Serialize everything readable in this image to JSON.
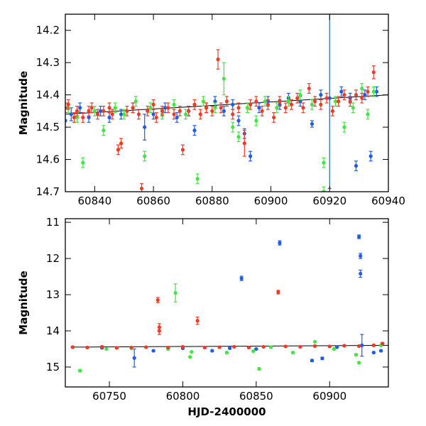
{
  "colors": {
    "blue": "#1f5ce8",
    "green": "#3ee83e",
    "red": "#f03a24",
    "axis": "#000000"
  },
  "chart_data": [
    {
      "type": "scatter",
      "xlabel": "",
      "ylabel": "Magnitude",
      "xlim": [
        60830,
        60940
      ],
      "ylim": [
        14.7,
        14.15
      ],
      "y_inverted": true,
      "x_ticks": [
        60840,
        60860,
        60880,
        60900,
        60920,
        60940
      ],
      "x_tick_labels": [
        "60840",
        "60860",
        "60880",
        "60900",
        "60920",
        "60940"
      ],
      "y_ticks": [
        14.2,
        14.3,
        14.4,
        14.5,
        14.6,
        14.7
      ],
      "y_tick_labels": [
        "14.2",
        "14.3",
        "14.4",
        "14.5",
        "14.6",
        "14.7"
      ],
      "trend_line": {
        "x": [
          60830,
          60940
        ],
        "y": [
          14.46,
          14.4
        ]
      },
      "series": [
        {
          "color": "blue",
          "points": [
            [
              60830,
              14.48,
              0.02
            ],
            [
              60832,
              14.46,
              0.02
            ],
            [
              60835,
              14.44,
              0.015
            ],
            [
              60838,
              14.47,
              0.015
            ],
            [
              60842,
              14.45,
              0.015
            ],
            [
              60845,
              14.47,
              0.015
            ],
            [
              60849,
              14.46,
              0.015
            ],
            [
              60853,
              14.44,
              0.015
            ],
            [
              60857,
              14.5,
              0.04
            ],
            [
              60860,
              14.46,
              0.015
            ],
            [
              60864,
              14.44,
              0.015
            ],
            [
              60868,
              14.47,
              0.015
            ],
            [
              60872,
              14.45,
              0.015
            ],
            [
              60874,
              14.51,
              0.015
            ],
            [
              60878,
              14.44,
              0.015
            ],
            [
              60881,
              14.42,
              0.015
            ],
            [
              60884,
              14.45,
              0.015
            ],
            [
              60887,
              14.43,
              0.015
            ],
            [
              60889,
              14.48,
              0.015
            ],
            [
              60891,
              14.52,
              0.015
            ],
            [
              60893,
              14.59,
              0.015
            ],
            [
              60896,
              14.44,
              0.015
            ],
            [
              60899,
              14.42,
              0.015
            ],
            [
              60903,
              14.43,
              0.015
            ],
            [
              60906,
              14.41,
              0.015
            ],
            [
              60910,
              14.42,
              0.015
            ],
            [
              60914,
              14.49,
              0.01
            ],
            [
              60917,
              14.4,
              0.015
            ],
            [
              60920,
              14.41,
              0.28
            ],
            [
              60924,
              14.39,
              0.015
            ],
            [
              60927,
              14.41,
              0.015
            ],
            [
              60929,
              14.62,
              0.015
            ],
            [
              60932,
              14.4,
              0.015
            ],
            [
              60934,
              14.59,
              0.015
            ],
            [
              60936,
              14.39,
              0.015
            ]
          ]
        },
        {
          "color": "green",
          "points": [
            [
              60831,
              14.44,
              0.015
            ],
            [
              60834,
              14.47,
              0.015
            ],
            [
              60836,
              14.61,
              0.015
            ],
            [
              60840,
              14.45,
              0.015
            ],
            [
              60843,
              14.51,
              0.015
            ],
            [
              60847,
              14.44,
              0.015
            ],
            [
              60850,
              14.46,
              0.015
            ],
            [
              60854,
              14.42,
              0.015
            ],
            [
              60857,
              14.59,
              0.015
            ],
            [
              60859,
              14.44,
              0.015
            ],
            [
              60863,
              14.46,
              0.015
            ],
            [
              60867,
              14.43,
              0.015
            ],
            [
              60871,
              14.46,
              0.015
            ],
            [
              60875,
              14.66,
              0.015
            ],
            [
              60877,
              14.42,
              0.015
            ],
            [
              60881,
              14.44,
              0.015
            ],
            [
              60884,
              14.35,
              0.05
            ],
            [
              60887,
              14.5,
              0.015
            ],
            [
              60889,
              14.53,
              0.015
            ],
            [
              60892,
              14.44,
              0.015
            ],
            [
              60895,
              14.48,
              0.015
            ],
            [
              60898,
              14.42,
              0.015
            ],
            [
              60902,
              14.44,
              0.015
            ],
            [
              60906,
              14.42,
              0.015
            ],
            [
              60910,
              14.4,
              0.015
            ],
            [
              60914,
              14.43,
              0.015
            ],
            [
              60918,
              14.61,
              0.015
            ],
            [
              60918,
              14.7,
              0.015
            ],
            [
              60922,
              14.42,
              0.015
            ],
            [
              60925,
              14.5,
              0.015
            ],
            [
              60928,
              14.44,
              0.015
            ],
            [
              60931,
              14.38,
              0.015
            ],
            [
              60933,
              14.46,
              0.015
            ],
            [
              60935,
              14.39,
              0.015
            ]
          ]
        },
        {
          "color": "red",
          "points": [
            [
              60830,
              14.44,
              0.015
            ],
            [
              60831,
              14.43,
              0.015
            ],
            [
              60833,
              14.47,
              0.015
            ],
            [
              60834,
              14.45,
              0.015
            ],
            [
              60836,
              14.47,
              0.015
            ],
            [
              60838,
              14.45,
              0.015
            ],
            [
              60839,
              14.44,
              0.015
            ],
            [
              60841,
              14.46,
              0.015
            ],
            [
              60843,
              14.45,
              0.015
            ],
            [
              60845,
              14.44,
              0.015
            ],
            [
              60846,
              14.46,
              0.015
            ],
            [
              60848,
              14.57,
              0.015
            ],
            [
              60849,
              14.55,
              0.015
            ],
            [
              60851,
              14.45,
              0.015
            ],
            [
              60853,
              14.44,
              0.015
            ],
            [
              60855,
              14.46,
              0.015
            ],
            [
              60856,
              14.69,
              0.015
            ],
            [
              60858,
              14.45,
              0.015
            ],
            [
              60860,
              14.43,
              0.015
            ],
            [
              60861,
              14.47,
              0.015
            ],
            [
              60863,
              14.45,
              0.015
            ],
            [
              60865,
              14.44,
              0.015
            ],
            [
              60867,
              14.46,
              0.015
            ],
            [
              60869,
              14.45,
              0.015
            ],
            [
              60870,
              14.57,
              0.015
            ],
            [
              60872,
              14.45,
              0.015
            ],
            [
              60874,
              14.43,
              0.015
            ],
            [
              60876,
              14.46,
              0.015
            ],
            [
              60878,
              14.44,
              0.015
            ],
            [
              60880,
              14.45,
              0.015
            ],
            [
              60882,
              14.29,
              0.03
            ],
            [
              60883,
              14.44,
              0.015
            ],
            [
              60885,
              14.42,
              0.015
            ],
            [
              60887,
              14.46,
              0.015
            ],
            [
              60889,
              14.44,
              0.015
            ],
            [
              60891,
              14.55,
              0.04
            ],
            [
              60893,
              14.43,
              0.015
            ],
            [
              60895,
              14.42,
              0.015
            ],
            [
              60897,
              14.45,
              0.015
            ],
            [
              60899,
              14.43,
              0.015
            ],
            [
              60901,
              14.47,
              0.015
            ],
            [
              60903,
              14.42,
              0.015
            ],
            [
              60905,
              14.44,
              0.015
            ],
            [
              60907,
              14.43,
              0.015
            ],
            [
              60909,
              14.41,
              0.015
            ],
            [
              60911,
              14.44,
              0.015
            ],
            [
              60913,
              14.38,
              0.015
            ],
            [
              60915,
              14.42,
              0.015
            ],
            [
              60917,
              14.43,
              0.015
            ],
            [
              60919,
              14.41,
              0.015
            ],
            [
              60921,
              14.45,
              0.015
            ],
            [
              60923,
              14.42,
              0.015
            ],
            [
              60925,
              14.4,
              0.015
            ],
            [
              60927,
              14.42,
              0.015
            ],
            [
              60929,
              14.4,
              0.015
            ],
            [
              60931,
              14.41,
              0.015
            ],
            [
              60933,
              14.39,
              0.015
            ],
            [
              60935,
              14.33,
              0.02
            ]
          ]
        }
      ]
    },
    {
      "type": "scatter",
      "xlabel": "HJD-2400000",
      "ylabel": "Magnitude",
      "xlim": [
        60720,
        60940
      ],
      "ylim": [
        15.55,
        10.9
      ],
      "y_inverted": true,
      "x_ticks": [
        60750,
        60800,
        60850,
        60900
      ],
      "x_tick_labels": [
        "60750",
        "60800",
        "60850",
        "60900"
      ],
      "y_ticks": [
        11,
        12,
        13,
        14,
        15
      ],
      "y_tick_labels": [
        "11",
        "12",
        "13",
        "14",
        "15"
      ],
      "trend_line": {
        "x": [
          60725,
          60940
        ],
        "y": [
          14.45,
          14.4
        ]
      },
      "series": [
        {
          "color": "blue",
          "points": [
            [
              60725,
              14.45,
              0.02
            ],
            [
              60745,
              14.47,
              0.02
            ],
            [
              60767,
              14.75,
              0.25
            ],
            [
              60780,
              14.55,
              0.02
            ],
            [
              60800,
              14.48,
              0.02
            ],
            [
              60820,
              14.55,
              0.02
            ],
            [
              60832,
              14.48,
              0.02
            ],
            [
              60840,
              12.55,
              0.06
            ],
            [
              60850,
              14.5,
              0.02
            ],
            [
              60866,
              11.57,
              0.06
            ],
            [
              60888,
              14.82,
              0.03
            ],
            [
              60895,
              14.76,
              0.03
            ],
            [
              60905,
              14.45,
              0.02
            ],
            [
              60920,
              11.4,
              0.05
            ],
            [
              60921,
              11.93,
              0.07
            ],
            [
              60921,
              12.42,
              0.1
            ],
            [
              60922,
              14.4,
              0.3
            ],
            [
              60930,
              14.6,
              0.02
            ],
            [
              60935,
              14.55,
              0.02
            ]
          ]
        },
        {
          "color": "green",
          "points": [
            [
              60730,
              15.1,
              0.03
            ],
            [
              60748,
              14.5,
              0.02
            ],
            [
              60765,
              14.48,
              0.02
            ],
            [
              60790,
              14.5,
              0.02
            ],
            [
              60795,
              12.95,
              0.25
            ],
            [
              60805,
              14.72,
              0.02
            ],
            [
              60806,
              14.58,
              0.02
            ],
            [
              60830,
              14.6,
              0.02
            ],
            [
              60848,
              14.56,
              0.02
            ],
            [
              60852,
              15.05,
              0.03
            ],
            [
              60860,
              14.45,
              0.02
            ],
            [
              60875,
              14.6,
              0.02
            ],
            [
              60890,
              14.3,
              0.02
            ],
            [
              60903,
              14.5,
              0.02
            ],
            [
              60918,
              14.66,
              0.02
            ],
            [
              60920,
              14.88,
              0.02
            ],
            [
              60935,
              14.4,
              0.02
            ]
          ]
        },
        {
          "color": "red",
          "points": [
            [
              60725,
              14.45,
              0.02
            ],
            [
              60735,
              14.46,
              0.02
            ],
            [
              60745,
              14.44,
              0.02
            ],
            [
              60755,
              14.47,
              0.02
            ],
            [
              60765,
              14.46,
              0.02
            ],
            [
              60775,
              14.45,
              0.02
            ],
            [
              60783,
              13.15,
              0.07
            ],
            [
              60784,
              13.9,
              0.1
            ],
            [
              60784,
              14.0,
              0.1
            ],
            [
              60790,
              14.46,
              0.02
            ],
            [
              60800,
              14.44,
              0.02
            ],
            [
              60810,
              13.72,
              0.1
            ],
            [
              60815,
              14.46,
              0.02
            ],
            [
              60825,
              14.45,
              0.02
            ],
            [
              60835,
              14.44,
              0.02
            ],
            [
              60845,
              14.46,
              0.02
            ],
            [
              60855,
              14.44,
              0.02
            ],
            [
              60865,
              12.93,
              0.05
            ],
            [
              60870,
              14.43,
              0.02
            ],
            [
              60880,
              14.44,
              0.02
            ],
            [
              60890,
              14.42,
              0.02
            ],
            [
              60900,
              14.43,
              0.02
            ],
            [
              60910,
              14.41,
              0.02
            ],
            [
              60920,
              14.42,
              0.02
            ],
            [
              60930,
              14.4,
              0.02
            ],
            [
              60936,
              14.35,
              0.02
            ]
          ]
        }
      ]
    }
  ]
}
